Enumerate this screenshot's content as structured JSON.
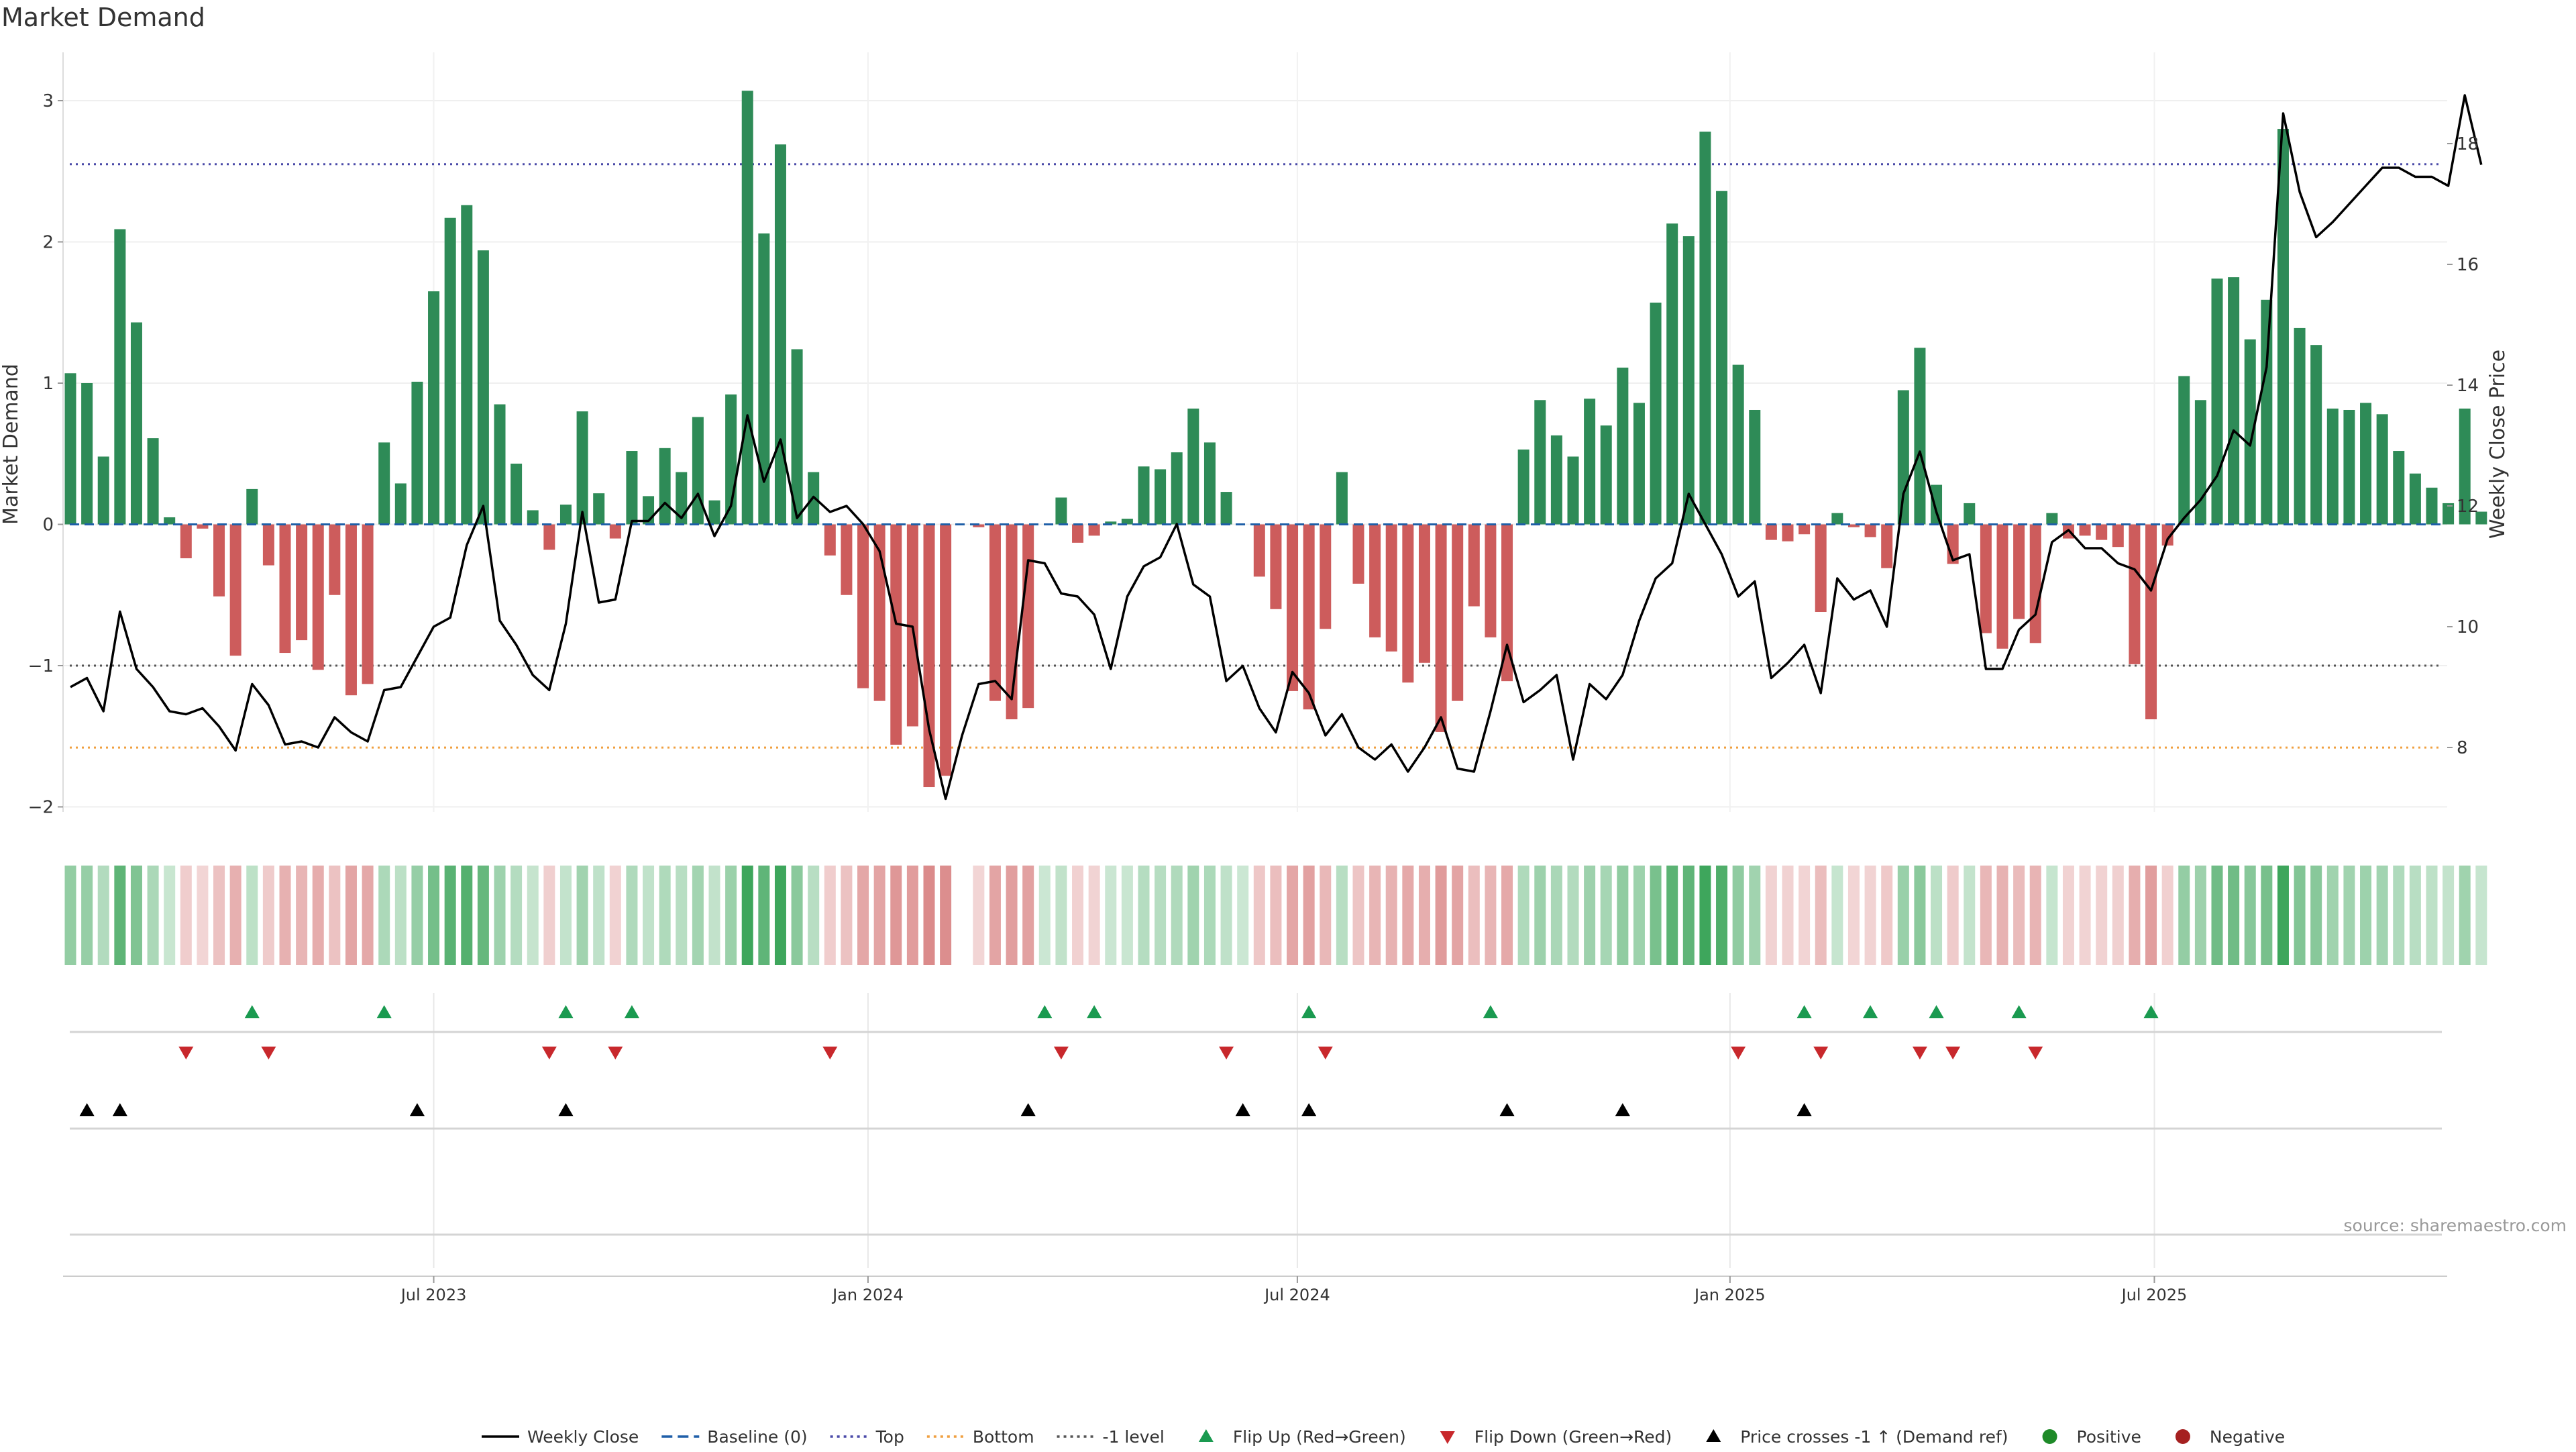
{
  "chart_data": {
    "type": "bar",
    "title": "Market Demand",
    "ylabel_left": "Market Demand",
    "ylabel_right": "Weekly Close Price",
    "ylim_left": [
      -2.35,
      3.35
    ],
    "ylim_right": [
      6.9,
      19.9
    ],
    "yticks_left": [
      -2,
      -1,
      0,
      1,
      2,
      3
    ],
    "yticks_right": [
      8,
      10,
      12,
      14,
      16,
      18
    ],
    "x_start": "2023-03-06",
    "x_interval": "weekly",
    "xtick_labels": [
      {
        "label": "Jul 2023",
        "index": 22
      },
      {
        "label": "Jan 2024",
        "index": 48.3
      },
      {
        "label": "Jul 2024",
        "index": 74.3
      },
      {
        "label": "Jan 2025",
        "index": 100.5
      },
      {
        "label": "Jul 2025",
        "index": 126.2
      }
    ],
    "reference_lines": {
      "baseline": 0,
      "top": 2.55,
      "bottom": -1.58,
      "minus_one": -1
    },
    "demand": [
      1.07,
      1.0,
      0.48,
      2.09,
      1.43,
      0.61,
      0.05,
      -0.24,
      -0.03,
      -0.51,
      -0.93,
      0.25,
      -0.29,
      -0.91,
      -0.82,
      -1.03,
      -0.5,
      -1.21,
      -1.13,
      0.58,
      0.29,
      1.01,
      1.65,
      2.17,
      2.26,
      1.94,
      0.85,
      0.43,
      0.1,
      -0.18,
      0.14,
      0.8,
      0.22,
      -0.1,
      0.52,
      0.2,
      0.54,
      0.37,
      0.76,
      0.17,
      0.92,
      3.07,
      2.06,
      2.69,
      1.24,
      0.37,
      -0.22,
      -0.5,
      -1.16,
      -1.25,
      -1.56,
      -1.43,
      -1.86,
      -1.78,
      0.0,
      -0.02,
      -1.25,
      -1.38,
      -1.3,
      0.0,
      0.19,
      -0.13,
      -0.08,
      0.02,
      0.04,
      0.41,
      0.39,
      0.51,
      0.82,
      0.58,
      0.23,
      0.0,
      -0.37,
      -0.6,
      -1.18,
      -1.31,
      -0.74,
      0.37,
      -0.42,
      -0.8,
      -0.9,
      -1.12,
      -0.98,
      -1.47,
      -1.25,
      -0.58,
      -0.8,
      -1.11,
      0.53,
      0.88,
      0.63,
      0.48,
      0.89,
      0.7,
      1.11,
      0.86,
      1.57,
      2.13,
      2.04,
      2.78,
      2.36,
      1.13,
      0.81,
      -0.11,
      -0.12,
      -0.07,
      -0.62,
      0.08,
      -0.02,
      -0.09,
      -0.31,
      0.95,
      1.25,
      0.28,
      -0.28,
      0.15,
      -0.77,
      -0.88,
      -0.67,
      -0.84,
      0.08,
      -0.1,
      -0.08,
      -0.11,
      -0.16,
      -0.99,
      -1.38,
      -0.15,
      1.05,
      0.88,
      1.74,
      1.75,
      1.31,
      1.59,
      2.8,
      1.39,
      1.27,
      0.82,
      0.81,
      0.86,
      0.78,
      0.52,
      0.36,
      0.26,
      0.15,
      0.82,
      0.09
    ],
    "weekly_close": [
      9.0,
      9.15,
      8.6,
      10.25,
      9.3,
      9.0,
      8.6,
      8.55,
      8.65,
      8.35,
      7.95,
      9.05,
      8.7,
      8.05,
      8.1,
      8.0,
      8.5,
      8.25,
      8.1,
      8.95,
      9.0,
      9.5,
      10.0,
      10.15,
      11.35,
      12.0,
      10.1,
      9.7,
      9.2,
      8.95,
      10.05,
      11.9,
      10.4,
      10.45,
      11.75,
      11.75,
      12.05,
      11.8,
      12.2,
      11.5,
      12.0,
      13.5,
      12.4,
      13.1,
      11.8,
      12.15,
      11.9,
      12.0,
      11.7,
      11.25,
      10.05,
      10.0,
      8.3,
      7.15,
      8.2,
      9.05,
      9.1,
      8.8,
      11.1,
      11.05,
      10.55,
      10.5,
      10.2,
      9.3,
      10.5,
      11.0,
      11.15,
      11.7,
      10.7,
      10.5,
      9.1,
      9.35,
      8.65,
      8.25,
      9.25,
      8.9,
      8.2,
      8.55,
      8.0,
      7.8,
      8.05,
      7.6,
      8.0,
      8.5,
      7.65,
      7.6,
      8.6,
      9.7,
      8.75,
      8.95,
      9.2,
      7.8,
      9.05,
      8.8,
      9.2,
      10.1,
      10.8,
      11.05,
      12.2,
      11.7,
      11.2,
      10.5,
      10.75,
      9.15,
      9.4,
      9.7,
      8.9,
      10.8,
      10.45,
      10.6,
      10.0,
      12.2,
      12.9,
      11.9,
      11.1,
      11.2,
      9.3,
      9.3,
      9.95,
      10.2,
      11.4,
      11.6,
      11.3,
      11.3,
      11.05,
      10.95,
      10.6,
      11.45,
      11.8,
      12.1,
      12.5,
      13.25,
      13.0,
      14.3,
      18.5,
      17.2,
      16.45,
      16.7,
      17.0,
      17.3,
      17.6,
      17.6,
      17.45,
      17.45,
      17.3,
      18.8,
      17.65
    ],
    "flip_up": [
      11,
      19,
      30,
      34,
      59,
      62,
      75,
      86,
      105,
      109,
      113,
      118,
      126
    ],
    "flip_down": [
      7,
      12,
      29,
      33,
      46,
      60,
      70,
      76,
      101,
      106,
      112,
      114,
      119
    ],
    "price_cross": [
      1,
      3,
      21,
      30,
      58,
      71,
      75,
      87,
      94,
      105
    ],
    "strip_missing": [
      54
    ],
    "legend": [
      {
        "label": "Weekly Close",
        "kind": "line",
        "color": "#000000"
      },
      {
        "label": "Baseline (0)",
        "kind": "dash",
        "color": "#1f5fa8"
      },
      {
        "label": "Top",
        "kind": "dot",
        "color": "#4a4aa8"
      },
      {
        "label": "Bottom",
        "kind": "dot",
        "color": "#f0a040"
      },
      {
        "label": "-1 level",
        "kind": "dot",
        "color": "#555555"
      },
      {
        "label": "Flip Up (Red→Green)",
        "kind": "tri-up",
        "color": "#1a9a50"
      },
      {
        "label": "Flip Down (Green→Red)",
        "kind": "tri-down",
        "color": "#c8282c"
      },
      {
        "label": "Price crosses -1 ↑ (Demand ref)",
        "kind": "tri-up",
        "color": "#000000"
      },
      {
        "label": "Positive",
        "kind": "circle",
        "color": "#1e8a28"
      },
      {
        "label": "Negative",
        "kind": "circle",
        "color": "#a52020"
      }
    ],
    "source": "source: sharemaestro.com",
    "colors": {
      "positive_bar": "#2e8b57",
      "negative_bar": "#cd5c5c",
      "strip_pos": "#2e9e4e",
      "strip_neg": "#cd5c5c"
    }
  }
}
